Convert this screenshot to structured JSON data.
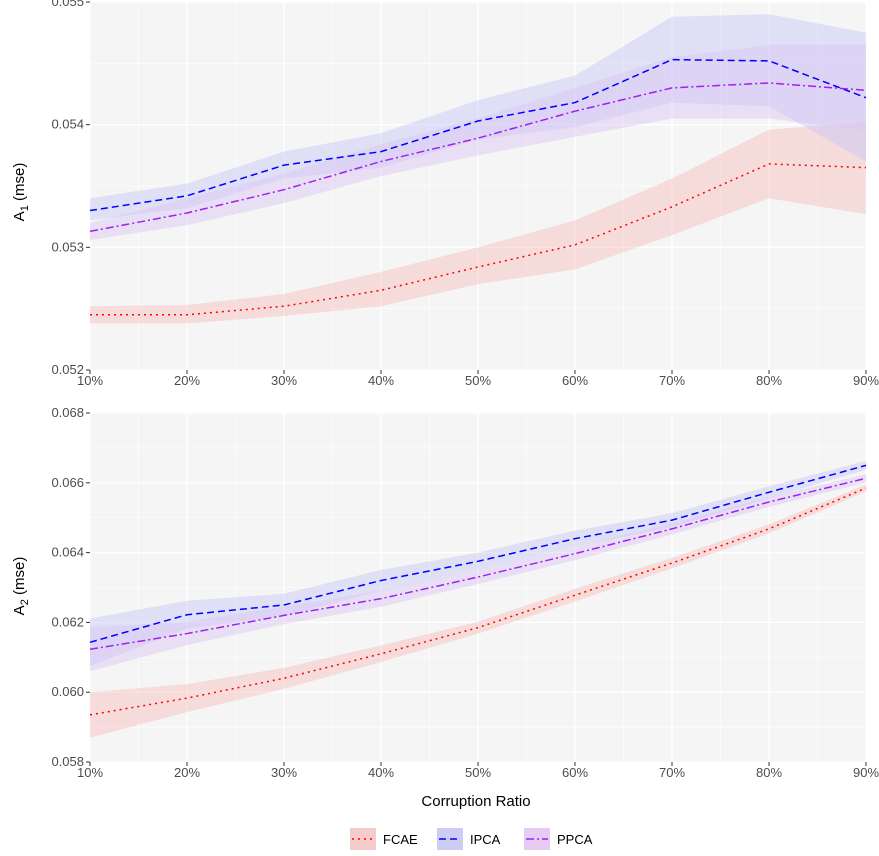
{
  "chart_data": [
    {
      "type": "line",
      "panel": "top",
      "ylabel_base": "A",
      "ylabel_sub": "1",
      "ylabel_unit": " (mse)",
      "xlabel": "",
      "x": [
        10,
        20,
        30,
        40,
        50,
        60,
        70,
        80,
        90
      ],
      "x_tick_labels": [
        "10%",
        "20%",
        "30%",
        "40%",
        "50%",
        "60%",
        "70%",
        "80%",
        "90%"
      ],
      "ylim": [
        0.052,
        0.055
      ],
      "y_ticks": [
        0.052,
        0.053,
        0.054,
        0.055
      ],
      "y_tick_labels": [
        "0.052",
        "0.053",
        "0.054",
        "0.055"
      ],
      "grid": true,
      "series": [
        {
          "name": "FCAE",
          "color": "#ff0000",
          "dash": "dotted",
          "values": [
            0.05245,
            0.05245,
            0.05252,
            0.05265,
            0.05284,
            0.05302,
            0.05333,
            0.05368,
            0.05365
          ],
          "lower": [
            0.05238,
            0.05238,
            0.05244,
            0.05252,
            0.0527,
            0.05282,
            0.0531,
            0.0534,
            0.05327
          ],
          "upper": [
            0.05252,
            0.05253,
            0.05262,
            0.0528,
            0.053,
            0.05322,
            0.05356,
            0.05396,
            0.05402
          ]
        },
        {
          "name": "IPCA",
          "color": "#0000ff",
          "dash": "dashed",
          "values": [
            0.0533,
            0.05342,
            0.05367,
            0.05378,
            0.05403,
            0.05418,
            0.05453,
            0.05452,
            0.05422
          ],
          "lower": [
            0.05322,
            0.05332,
            0.05356,
            0.05365,
            0.05388,
            0.05398,
            0.05418,
            0.05415,
            0.0537
          ],
          "upper": [
            0.0534,
            0.05352,
            0.05378,
            0.05393,
            0.0542,
            0.0544,
            0.05488,
            0.0549,
            0.05475
          ]
        },
        {
          "name": "PPCA",
          "color": "#a020f0",
          "dash": "dashdot",
          "values": [
            0.05313,
            0.05328,
            0.05347,
            0.0537,
            0.05389,
            0.05411,
            0.0543,
            0.05434,
            0.05428
          ],
          "lower": [
            0.05306,
            0.05318,
            0.05336,
            0.05358,
            0.05375,
            0.0539,
            0.05405,
            0.05405,
            0.05395
          ],
          "upper": [
            0.0532,
            0.0534,
            0.0536,
            0.05384,
            0.05405,
            0.0543,
            0.05455,
            0.05465,
            0.05465
          ]
        }
      ]
    },
    {
      "type": "line",
      "panel": "bottom",
      "ylabel_base": "A",
      "ylabel_sub": "2",
      "ylabel_unit": " (mse)",
      "xlabel": "Corruption Ratio",
      "x": [
        10,
        20,
        30,
        40,
        50,
        60,
        70,
        80,
        90
      ],
      "x_tick_labels": [
        "10%",
        "20%",
        "30%",
        "40%",
        "50%",
        "60%",
        "70%",
        "80%",
        "90%"
      ],
      "ylim": [
        0.058,
        0.068
      ],
      "y_ticks": [
        0.058,
        0.06,
        0.062,
        0.064,
        0.066,
        0.068
      ],
      "y_tick_labels": [
        "0.058",
        "0.060",
        "0.062",
        "0.064",
        "0.066",
        "0.068"
      ],
      "grid": true,
      "series": [
        {
          "name": "FCAE",
          "color": "#ff0000",
          "dash": "dotted",
          "values": [
            0.05935,
            0.05983,
            0.0604,
            0.0611,
            0.06185,
            0.06278,
            0.0637,
            0.06468,
            0.06585
          ],
          "lower": [
            0.0587,
            0.05943,
            0.0601,
            0.06086,
            0.06168,
            0.0626,
            0.06355,
            0.06455,
            0.06575
          ],
          "upper": [
            0.06,
            0.06023,
            0.0607,
            0.06134,
            0.06202,
            0.06296,
            0.06385,
            0.06481,
            0.06595
          ]
        },
        {
          "name": "IPCA",
          "color": "#0000ff",
          "dash": "dashed",
          "values": [
            0.06143,
            0.06222,
            0.0625,
            0.0632,
            0.06375,
            0.0644,
            0.06493,
            0.06573,
            0.0665
          ],
          "lower": [
            0.06075,
            0.06182,
            0.06218,
            0.0629,
            0.0635,
            0.06417,
            0.06473,
            0.06556,
            0.06637
          ],
          "upper": [
            0.06211,
            0.06262,
            0.06282,
            0.0635,
            0.064,
            0.06463,
            0.06513,
            0.0659,
            0.06663
          ]
        },
        {
          "name": "PPCA",
          "color": "#a020f0",
          "dash": "dashdot",
          "values": [
            0.06123,
            0.06168,
            0.0622,
            0.06268,
            0.0633,
            0.06397,
            0.06468,
            0.06545,
            0.06613
          ],
          "lower": [
            0.0606,
            0.06135,
            0.06195,
            0.06245,
            0.0631,
            0.06378,
            0.06452,
            0.06531,
            0.06601
          ],
          "upper": [
            0.06186,
            0.06201,
            0.06245,
            0.06291,
            0.0635,
            0.06416,
            0.06484,
            0.06559,
            0.06625
          ]
        }
      ]
    }
  ],
  "legend": {
    "position": "bottom",
    "items": [
      {
        "name": "FCAE",
        "color": "#ff0000",
        "fill": "#f4cccc",
        "dash": "dotted"
      },
      {
        "name": "IPCA",
        "color": "#0000ff",
        "fill": "#ccccf4",
        "dash": "dashed"
      },
      {
        "name": "PPCA",
        "color": "#a020f0",
        "fill": "#e6ccf4",
        "dash": "dashdot"
      }
    ]
  }
}
